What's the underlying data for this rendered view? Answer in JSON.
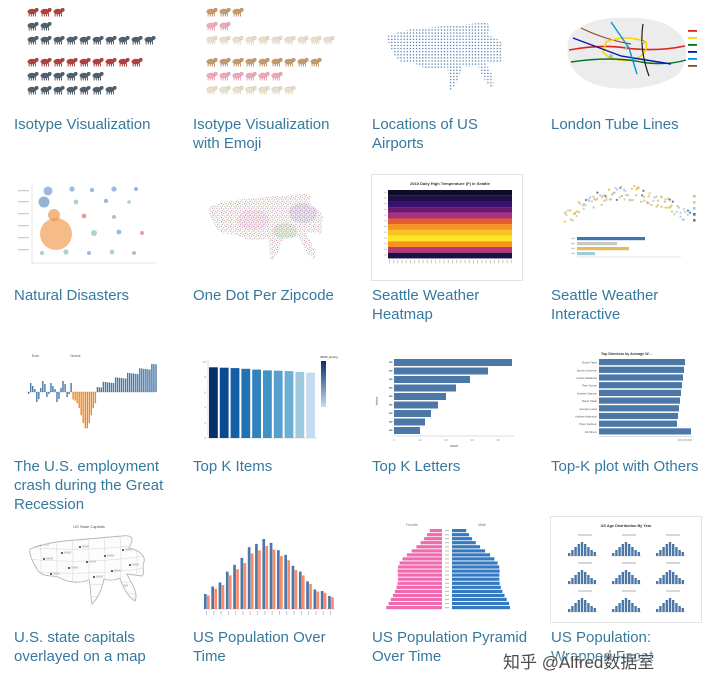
{
  "page": {
    "background": "#ffffff",
    "title_link_color": "#35799f",
    "accent_blue": "#4c78a8"
  },
  "watermark": {
    "text": "知乎 @Alfred数据室"
  },
  "gallery": {
    "items": [
      {
        "title": "Isotype Visualization"
      },
      {
        "title": "Isotype Visualization with Emoji"
      },
      {
        "title": "Locations of US Airports"
      },
      {
        "title": "London Tube Lines"
      },
      {
        "title": "Natural Disasters"
      },
      {
        "title": "One Dot Per Zipcode"
      },
      {
        "title": "Seattle Weather Heatmap",
        "thumb_title": "2010 Daily High Temperature (F) in Seattle"
      },
      {
        "title": "Seattle Weather Interactive"
      },
      {
        "title": "The U.S. employment crash during the Great Recession",
        "annotations": [
          "Bush",
          "Obama"
        ]
      },
      {
        "title": "Top K Items",
        "legend_title": "IMDB_Rating",
        "y_ticks": [
          "0",
          "2",
          "4",
          "6",
          "8",
          "10"
        ]
      },
      {
        "title": "Top K Letters",
        "x_label": "count",
        "y_label": "letters",
        "x_ticks": [
          "0",
          "10",
          "20",
          "30",
          "40"
        ]
      },
      {
        "title": "Top-K plot with Others",
        "thumb_title": "Top Directors by Average W…",
        "bar_labels": [
          "David Yates",
          "James Cameron",
          "Carlos Saldanha",
          "Pete Docter",
          "Andrew Stanton",
          "David Slade",
          "George Lucas",
          "Andrew Adamson",
          "Peter Jackson",
          "All Others"
        ],
        "x_tick": "400,000,000"
      },
      {
        "title": "U.S. state capitals overlayed on a map",
        "thumb_title": "US State Capitals"
      },
      {
        "title": "US Population Over Time"
      },
      {
        "title": "US Population Pyramid Over Time",
        "col_labels": [
          "Female",
          "Male"
        ]
      },
      {
        "title": "US Population: Wrapped Facet",
        "thumb_title": "US Age Distribution By Year"
      }
    ]
  }
}
